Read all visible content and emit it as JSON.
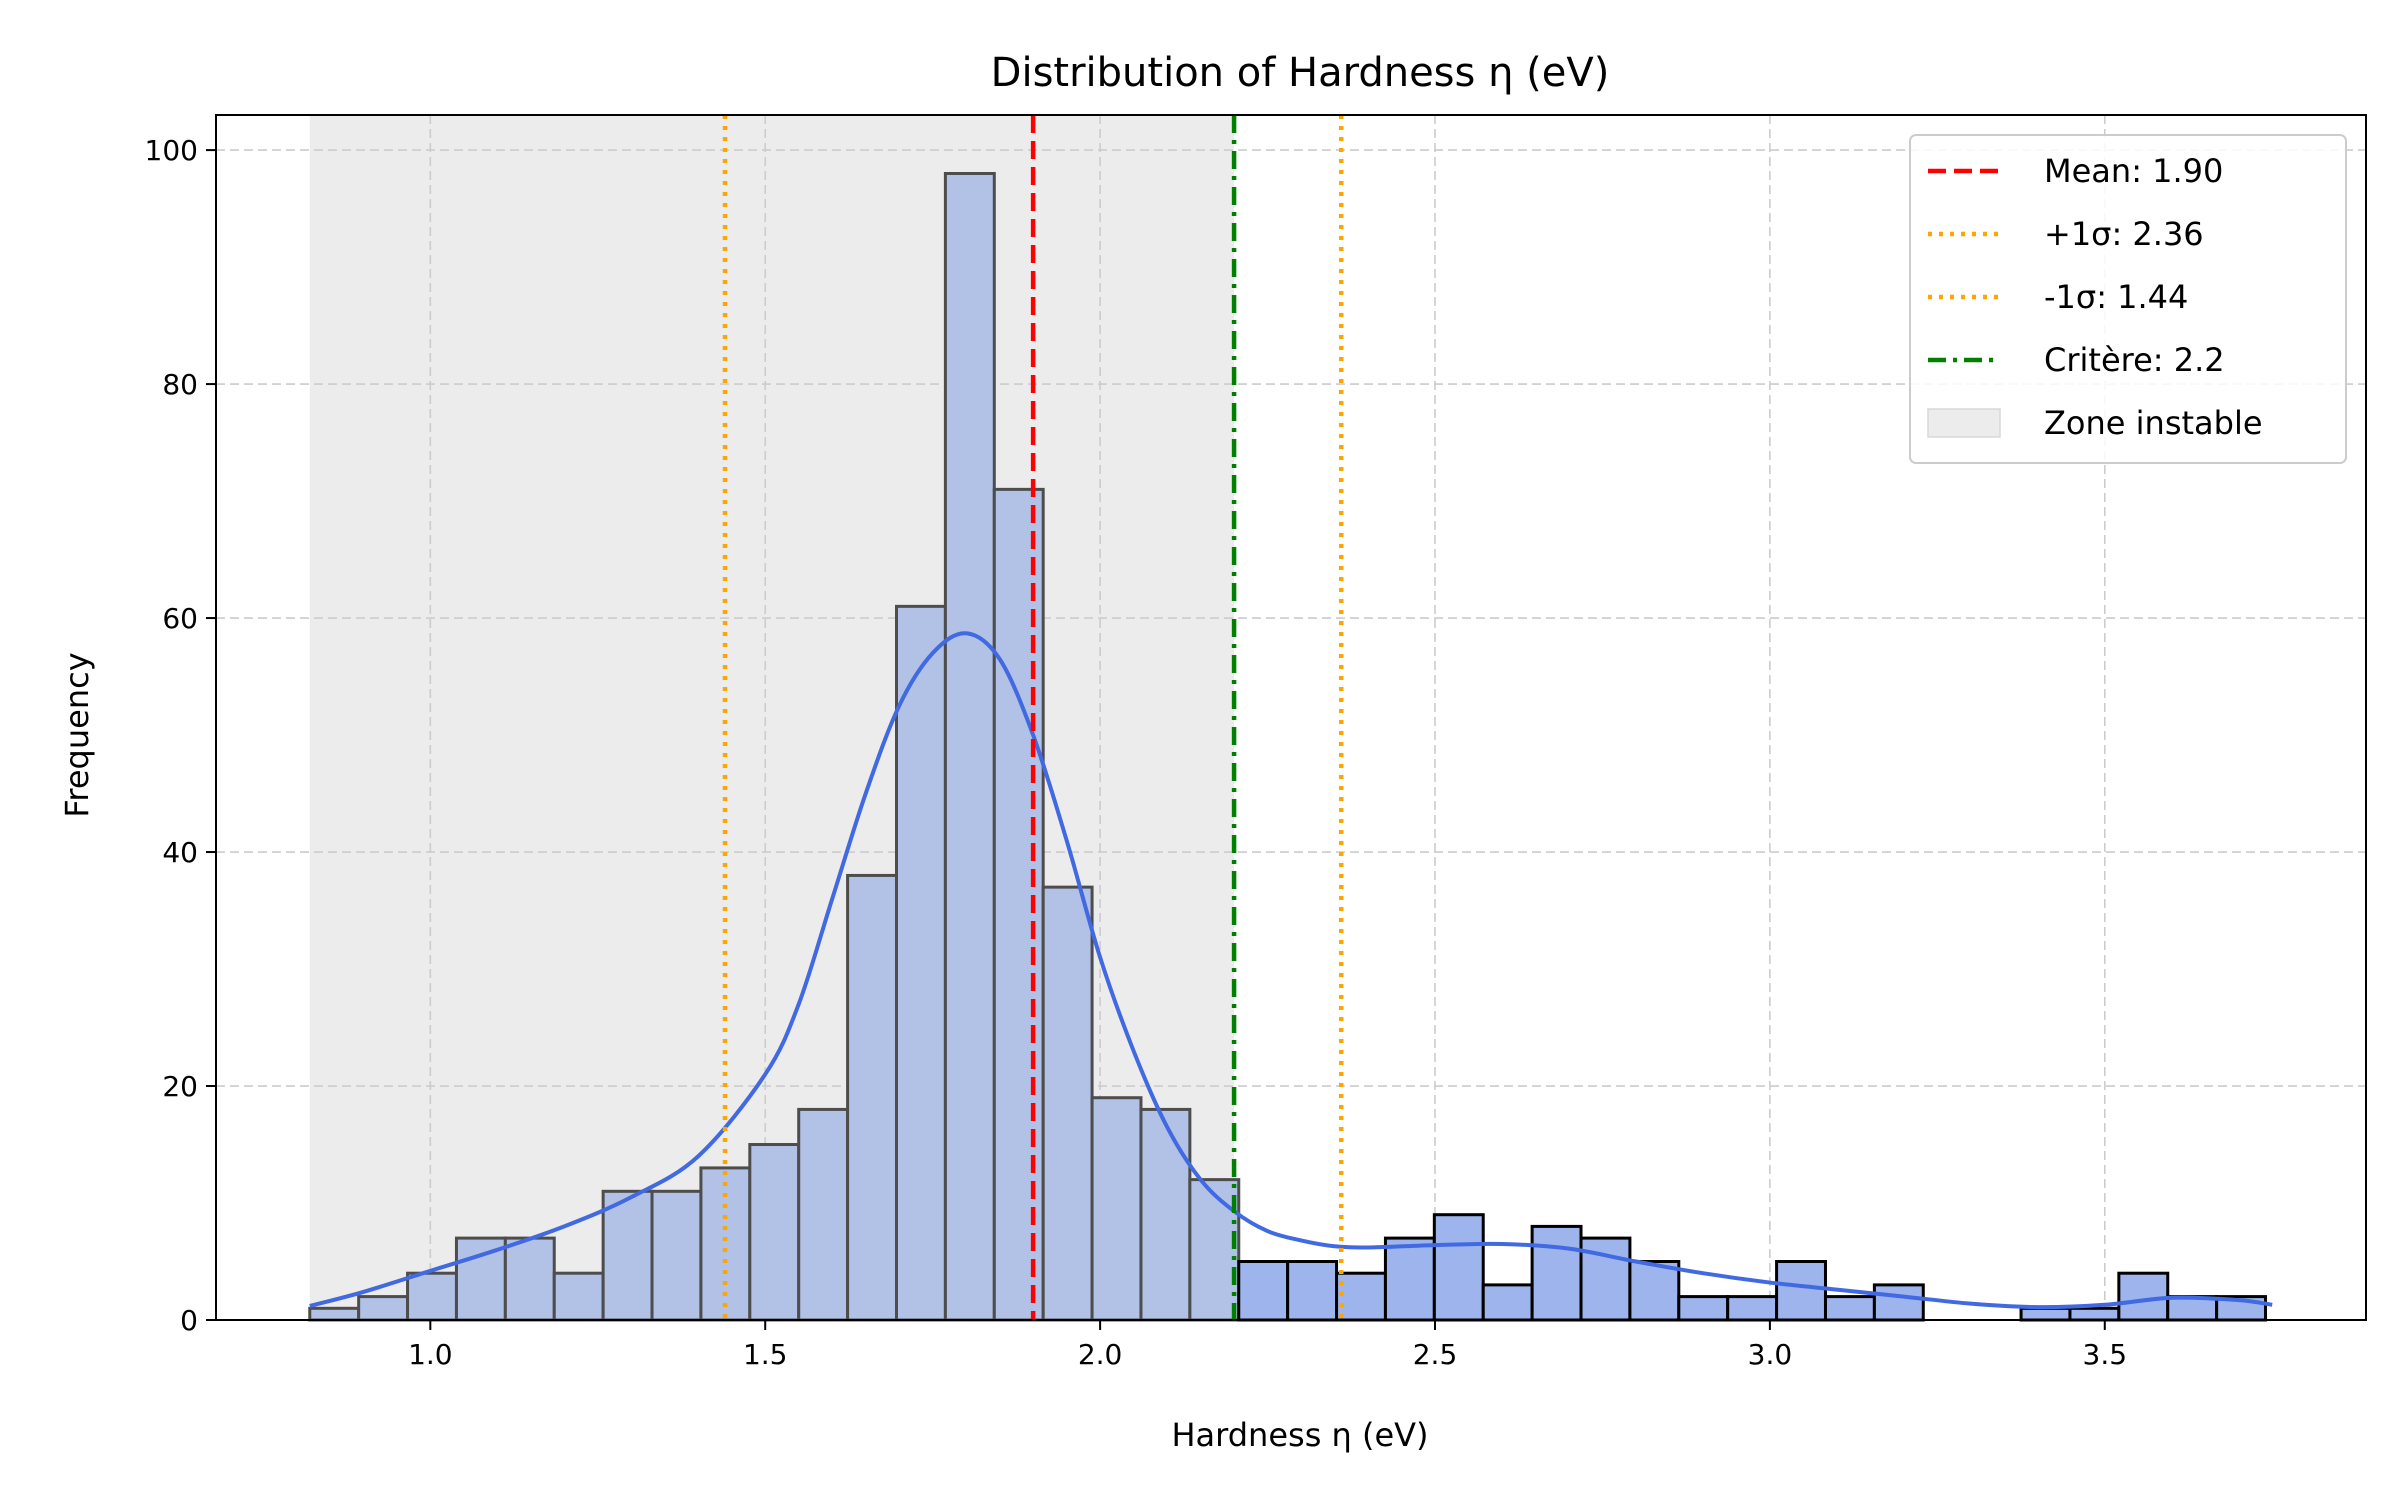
{
  "chart_data": {
    "type": "bar",
    "title": "Distribution of Hardness η (eV)",
    "xlabel": "Hardness η (eV)",
    "ylabel": "Frequency",
    "xlim": [
      0.68,
      3.89
    ],
    "ylim": [
      0,
      103
    ],
    "xticks": [
      1.0,
      1.5,
      2.0,
      2.5,
      3.0,
      3.5
    ],
    "xtick_labels": [
      "1.0",
      "1.5",
      "2.0",
      "2.5",
      "3.0",
      "3.5"
    ],
    "yticks": [
      0,
      20,
      40,
      60,
      80,
      100
    ],
    "ytick_labels": [
      "0",
      "20",
      "40",
      "60",
      "80",
      "100"
    ],
    "grid": true,
    "legend_position": "top-right",
    "bin_start": 0.82,
    "bin_width": 0.073,
    "counts": [
      1,
      2,
      4,
      7,
      7,
      4,
      11,
      11,
      13,
      15,
      18,
      38,
      61,
      98,
      71,
      37,
      19,
      18,
      12,
      5,
      5,
      4,
      7,
      9,
      3,
      8,
      7,
      5,
      2,
      2,
      5,
      2,
      3,
      0,
      0,
      1,
      1,
      4,
      2,
      2
    ],
    "kde_x": [
      0.82,
      0.9,
      1.0,
      1.1,
      1.2,
      1.3,
      1.4,
      1.5,
      1.55,
      1.6,
      1.65,
      1.7,
      1.75,
      1.8,
      1.85,
      1.9,
      1.95,
      2.0,
      2.05,
      2.1,
      2.15,
      2.2,
      2.25,
      2.3,
      2.35,
      2.4,
      2.5,
      2.6,
      2.7,
      2.8,
      2.9,
      3.0,
      3.1,
      3.2,
      3.3,
      3.4,
      3.5,
      3.6,
      3.7,
      3.75
    ],
    "kde_y": [
      1.2,
      2.4,
      4.2,
      6.0,
      8.0,
      10.5,
      14.0,
      21.0,
      27.0,
      36.0,
      45.0,
      52.5,
      57.0,
      58.7,
      56.5,
      50.0,
      41.0,
      31.0,
      23.0,
      16.5,
      12.0,
      9.3,
      7.6,
      6.8,
      6.3,
      6.2,
      6.4,
      6.5,
      6.1,
      5.0,
      4.0,
      3.2,
      2.6,
      2.0,
      1.4,
      1.1,
      1.3,
      1.9,
      1.7,
      1.3
    ],
    "shaded_zone": {
      "x0": 0.82,
      "x1": 2.2,
      "color": "#ececec",
      "label": "Zone instable"
    },
    "vlines": [
      {
        "x": 1.9,
        "label": "Mean: 1.90",
        "color": "#ff0000",
        "style": "dashed"
      },
      {
        "x": 2.36,
        "label": "+1σ: 2.36",
        "color": "#ffa500",
        "style": "dotted"
      },
      {
        "x": 1.44,
        "label": "-1σ: 1.44",
        "color": "#ffa500",
        "style": "dotted"
      },
      {
        "x": 2.2,
        "label": "Critère: 2.2",
        "color": "#008000",
        "style": "dashdot"
      }
    ],
    "colors": {
      "bar_unstable": "#b2c1e6",
      "bar_stable": "#9db5ec",
      "kde": "#4169e1",
      "edge_unstable": "#4d4d4d",
      "edge_stable": "#000000"
    },
    "legend": [
      "Mean: 1.90",
      "+1σ: 2.36",
      "-1σ: 1.44",
      "Critère: 2.2",
      "Zone instable"
    ]
  }
}
